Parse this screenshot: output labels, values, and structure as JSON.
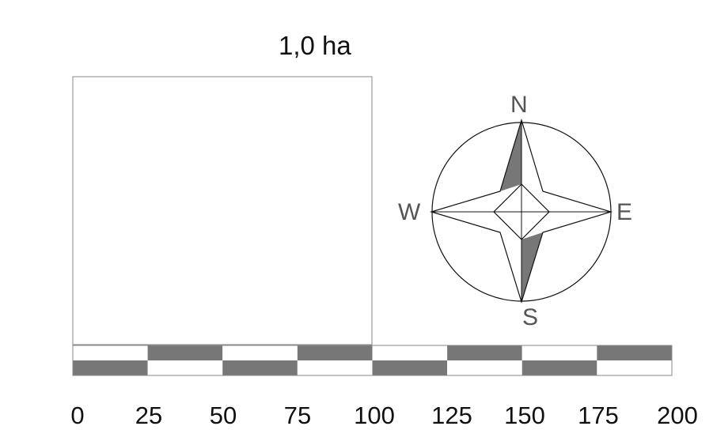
{
  "area": {
    "label": "1,0 ha"
  },
  "compass": {
    "north": "N",
    "south": "S",
    "east": "E",
    "west": "W"
  },
  "scale_bar": {
    "ticks": [
      "0",
      "25",
      "50",
      "75",
      "100",
      "125",
      "150",
      "175",
      "200"
    ],
    "segment_count": 8
  },
  "colors": {
    "fill_dark": "#777777",
    "fill_light": "#ffffff",
    "outline": "#888888",
    "line": "#111111"
  }
}
